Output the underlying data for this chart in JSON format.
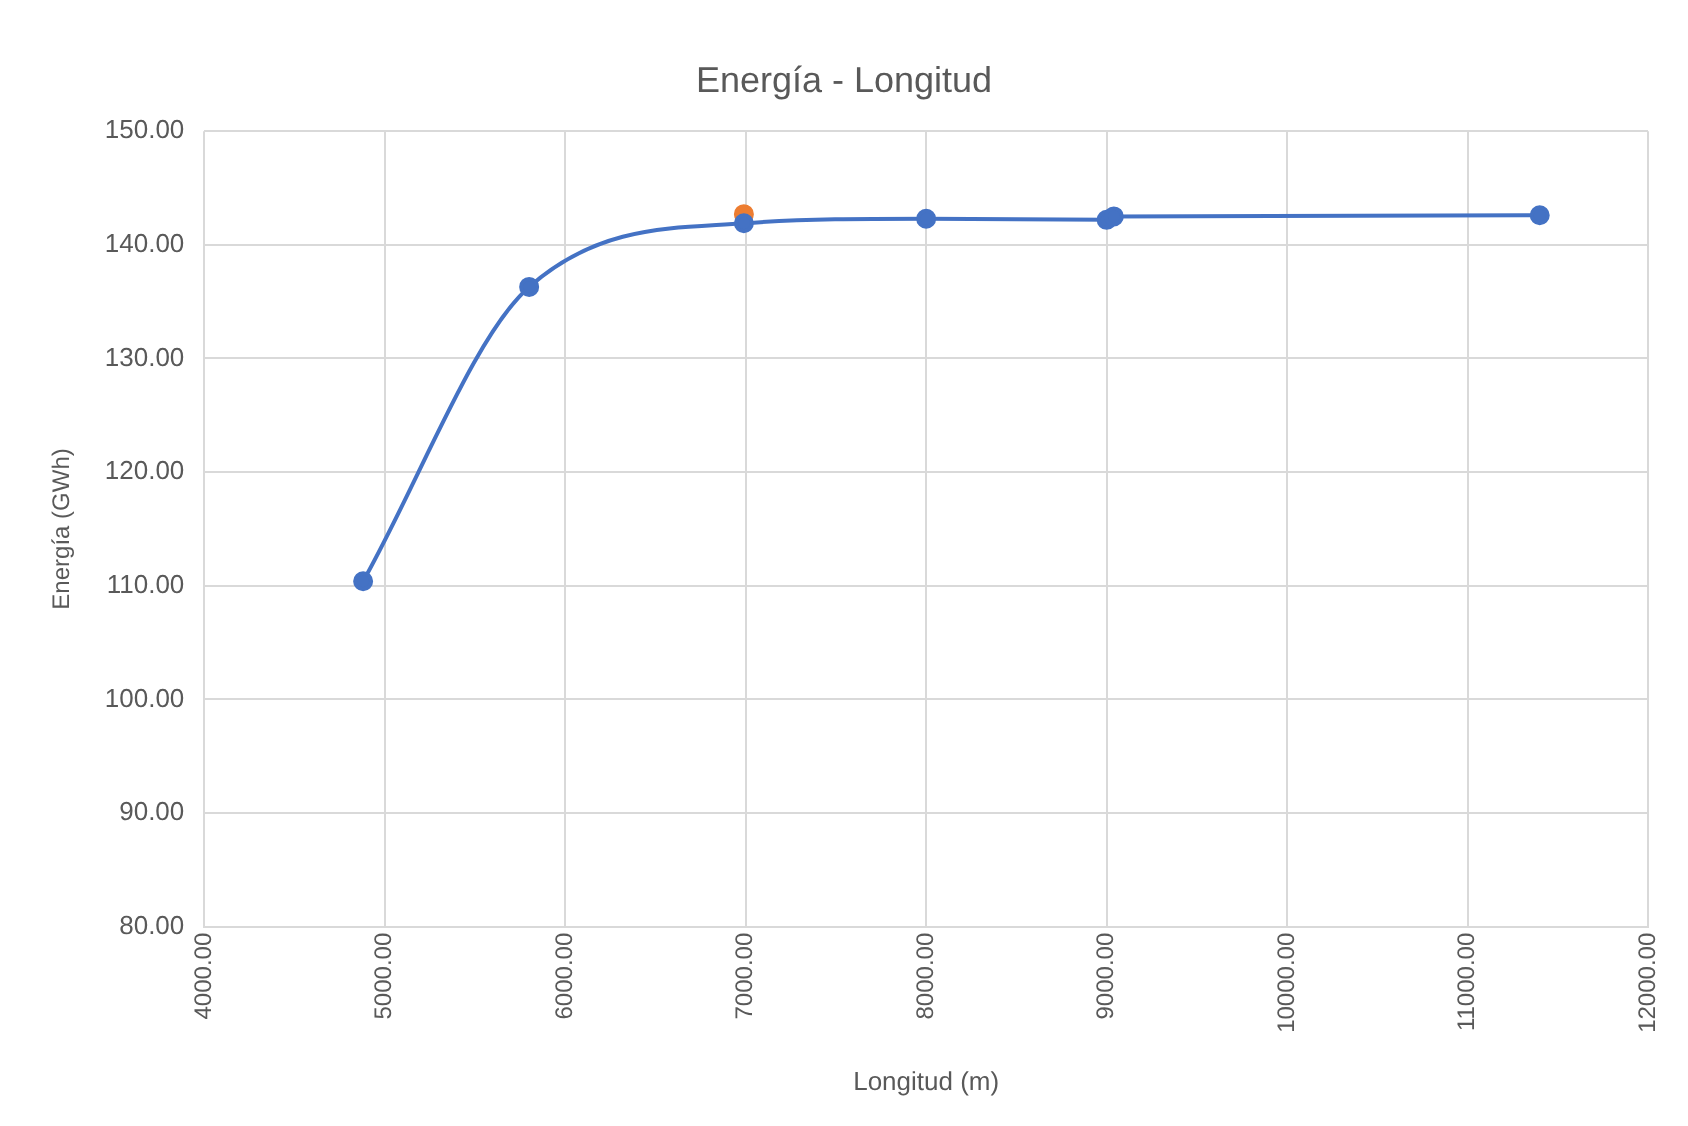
{
  "chart_data": {
    "type": "line",
    "title": "Energía - Longitud",
    "xlabel": "Longitud (m)",
    "ylabel": "Energía (GWh)",
    "series": [
      {
        "type": "line",
        "color": "#4472c4",
        "x": [
          4880,
          5800,
          6990,
          8000,
          9000,
          9040,
          11400
        ],
        "values": [
          110.4,
          136.3,
          141.9,
          142.3,
          142.2,
          142.5,
          142.6
        ]
      },
      {
        "type": "scatter",
        "color": "#ed7d31",
        "x": [
          6990
        ],
        "values": [
          142.7
        ]
      }
    ],
    "xlim": [
      4000,
      12000
    ],
    "xticks": [
      {
        "value": 4000,
        "label": "4000.00"
      },
      {
        "value": 5000,
        "label": "5000.00"
      },
      {
        "value": 6000,
        "label": "6000.00"
      },
      {
        "value": 7000,
        "label": "7000.00"
      },
      {
        "value": 8000,
        "label": "8000.00"
      },
      {
        "value": 9000,
        "label": "9000.00"
      },
      {
        "value": 10000,
        "label": "10000.00"
      },
      {
        "value": 11000,
        "label": "11000.00"
      },
      {
        "value": 12000,
        "label": "12000.00"
      }
    ],
    "ylim": [
      80,
      150
    ],
    "yticks": [
      {
        "value": 80,
        "label": "80.00"
      },
      {
        "value": 90,
        "label": "90.00"
      },
      {
        "value": 100,
        "label": "100.00"
      },
      {
        "value": 110,
        "label": "110.00"
      },
      {
        "value": 120,
        "label": "120.00"
      },
      {
        "value": 130,
        "label": "130.00"
      },
      {
        "value": 140,
        "label": "140.00"
      },
      {
        "value": 150,
        "label": "150.00"
      }
    ],
    "grid": true,
    "marker": "circle",
    "legend": false
  }
}
